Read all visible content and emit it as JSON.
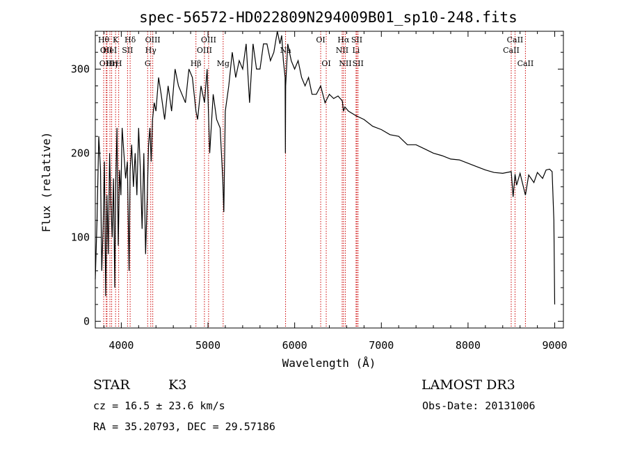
{
  "chart_data": {
    "type": "line",
    "title": "spec-56572-HD022809N294009B01_sp10-248.fits",
    "xlabel": "Wavelength (Å)",
    "ylabel": "Flux (relative)",
    "xlim": [
      3700,
      9100
    ],
    "ylim": [
      -8,
      345
    ],
    "x_ticks": [
      4000,
      5000,
      6000,
      7000,
      8000,
      9000
    ],
    "x_tick_labels": [
      "4000",
      "5000",
      "6000",
      "7000",
      "8000",
      "9000"
    ],
    "y_ticks": [
      0,
      100,
      200,
      300
    ],
    "y_tick_labels": [
      "0",
      "100",
      "200",
      "300"
    ],
    "series": [
      {
        "name": "spectrum",
        "x": [
          3700,
          3720,
          3740,
          3760,
          3775,
          3790,
          3805,
          3820,
          3835,
          3850,
          3865,
          3880,
          3895,
          3910,
          3925,
          3935,
          3950,
          3965,
          3980,
          3995,
          4010,
          4030,
          4050,
          4070,
          4090,
          4102,
          4120,
          4140,
          4160,
          4180,
          4200,
          4220,
          4240,
          4260,
          4280,
          4300,
          4315,
          4330,
          4345,
          4360,
          4380,
          4400,
          4430,
          4460,
          4500,
          4540,
          4580,
          4620,
          4660,
          4700,
          4740,
          4780,
          4820,
          4861,
          4880,
          4920,
          4960,
          4990,
          5020,
          5060,
          5100,
          5140,
          5170,
          5183,
          5200,
          5240,
          5280,
          5320,
          5360,
          5400,
          5440,
          5480,
          5520,
          5560,
          5600,
          5640,
          5680,
          5720,
          5760,
          5800,
          5830,
          5850,
          5870,
          5890,
          5893,
          5896,
          5920,
          5960,
          6000,
          6040,
          6080,
          6120,
          6160,
          6200,
          6250,
          6300,
          6350,
          6400,
          6450,
          6500,
          6550,
          6563,
          6580,
          6620,
          6700,
          6800,
          6900,
          7000,
          7100,
          7200,
          7300,
          7400,
          7500,
          7600,
          7700,
          7800,
          7900,
          8000,
          8100,
          8200,
          8300,
          8400,
          8498,
          8520,
          8542,
          8560,
          8600,
          8662,
          8700,
          8760,
          8800,
          8860,
          8900,
          8940,
          8970,
          8990,
          9000
        ],
        "values": [
          50,
          120,
          220,
          180,
          60,
          110,
          190,
          30,
          150,
          80,
          200,
          140,
          100,
          170,
          40,
          160,
          230,
          90,
          180,
          150,
          230,
          200,
          170,
          190,
          60,
          180,
          210,
          160,
          200,
          150,
          230,
          180,
          110,
          200,
          80,
          150,
          210,
          230,
          190,
          240,
          260,
          250,
          290,
          270,
          240,
          280,
          250,
          300,
          280,
          270,
          260,
          300,
          290,
          250,
          240,
          280,
          260,
          300,
          200,
          270,
          240,
          230,
          170,
          130,
          250,
          280,
          320,
          290,
          310,
          300,
          330,
          260,
          330,
          300,
          300,
          330,
          330,
          310,
          320,
          345,
          330,
          340,
          310,
          290,
          200,
          280,
          330,
          310,
          300,
          310,
          290,
          280,
          290,
          270,
          270,
          280,
          260,
          270,
          265,
          268,
          262,
          250,
          255,
          250,
          245,
          240,
          232,
          228,
          222,
          220,
          210,
          210,
          205,
          200,
          197,
          193,
          192,
          188,
          184,
          180,
          177,
          176,
          178,
          148,
          175,
          162,
          176,
          150,
          174,
          165,
          177,
          170,
          180,
          181,
          178,
          120,
          20
        ]
      }
    ],
    "line_markers": [
      {
        "wavelength": 3797,
        "label": "Hθ",
        "row": 1
      },
      {
        "wavelength": 3826,
        "label": "OII",
        "row": 2
      },
      {
        "wavelength": 3835,
        "label": "OIII",
        "row": 3
      },
      {
        "wavelength": 3869,
        "label": "HeI",
        "row": 2
      },
      {
        "wavelength": 3889,
        "label": "Hη",
        "row": 3
      },
      {
        "wavelength": 3934,
        "label": "K",
        "row": 1
      },
      {
        "wavelength": 3970,
        "label": "H",
        "row": 3
      },
      {
        "wavelength": 4072,
        "label": "SII",
        "row": 2
      },
      {
        "wavelength": 4102,
        "label": "Hδ",
        "row": 1
      },
      {
        "wavelength": 4304,
        "label": "G",
        "row": 3
      },
      {
        "wavelength": 4340,
        "label": "Hγ",
        "row": 2
      },
      {
        "wavelength": 4363,
        "label": "OIII",
        "row": 1
      },
      {
        "wavelength": 4861,
        "label": "Hβ",
        "row": 3
      },
      {
        "wavelength": 4959,
        "label": "OIII",
        "row": 2
      },
      {
        "wavelength": 5007,
        "label": "OIII",
        "row": 1
      },
      {
        "wavelength": 5175,
        "label": "Mg",
        "row": 3
      },
      {
        "wavelength": 5895,
        "label": "Na",
        "row": 2
      },
      {
        "wavelength": 6300,
        "label": "OI",
        "row": 1
      },
      {
        "wavelength": 6364,
        "label": "OI",
        "row": 3
      },
      {
        "wavelength": 6548,
        "label": "NII",
        "row": 2
      },
      {
        "wavelength": 6563,
        "label": "Hα",
        "row": 1
      },
      {
        "wavelength": 6584,
        "label": "NII",
        "row": 3
      },
      {
        "wavelength": 6708,
        "label": "Li",
        "row": 2
      },
      {
        "wavelength": 6717,
        "label": "SII",
        "row": 1
      },
      {
        "wavelength": 6731,
        "label": "SII",
        "row": 3
      },
      {
        "wavelength": 8498,
        "label": "CaII",
        "row": 2
      },
      {
        "wavelength": 8542,
        "label": "CaII",
        "row": 1
      },
      {
        "wavelength": 8662,
        "label": "CaII",
        "row": 3
      }
    ]
  },
  "info": {
    "class": "STAR",
    "subclass": "K3",
    "survey": "LAMOST DR3",
    "redshift": "cz = 16.5 ± 23.6 km/s",
    "obs_date": "Obs-Date: 20131006",
    "coords": "RA =  35.20793, DEC =  29.57186"
  },
  "colors": {
    "marker": "#cc0000",
    "line": "#000000"
  }
}
